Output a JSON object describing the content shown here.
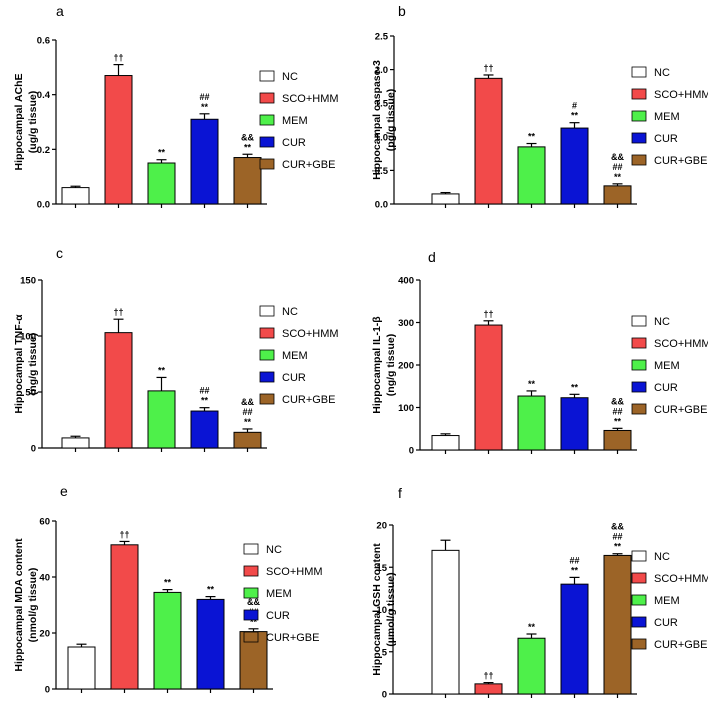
{
  "chart_data": [
    {
      "type": "bar",
      "panel": "a",
      "ylabel_lines": [
        "Hippocampal AChE",
        "(ug/g tissue)"
      ],
      "categories": [
        "NC",
        "SCO+HMM",
        "MEM",
        "CUR",
        "CUR+GBE"
      ],
      "values": [
        0.06,
        0.47,
        0.15,
        0.31,
        0.17
      ],
      "errors": [
        0.005,
        0.04,
        0.012,
        0.02,
        0.012
      ],
      "ylim": [
        0,
        0.6
      ],
      "yticks": [
        0,
        0.2,
        0.4,
        0.6
      ],
      "ytick_labels": [
        "0.0",
        "0.2",
        "0.4",
        "0.6"
      ],
      "annotations": [
        [],
        [
          "††"
        ],
        [
          "**"
        ],
        [
          "##",
          "**"
        ],
        [
          "&&",
          "**"
        ]
      ]
    },
    {
      "type": "bar",
      "panel": "b",
      "ylabel_lines": [
        "Hippocampal caspase-3",
        "(pg/g tissue)"
      ],
      "categories": [
        "NC",
        "SCO+HMM",
        "MEM",
        "CUR",
        "CUR+GBE"
      ],
      "values": [
        0.15,
        1.87,
        0.85,
        1.13,
        0.27
      ],
      "errors": [
        0.02,
        0.05,
        0.05,
        0.08,
        0.03
      ],
      "ylim": [
        0,
        2.5
      ],
      "yticks": [
        0,
        0.5,
        1.0,
        1.5,
        2.0,
        2.5
      ],
      "ytick_labels": [
        "0.0",
        "0.5",
        "1.0",
        "1.5",
        "2.0",
        "2.5"
      ],
      "annotations": [
        [],
        [
          "††"
        ],
        [
          "**"
        ],
        [
          "#",
          "**"
        ],
        [
          "&&",
          "##",
          "**"
        ]
      ]
    },
    {
      "type": "bar",
      "panel": "c",
      "ylabel_lines": [
        "Hippocampal TNF-α",
        "(ng/g tissue)"
      ],
      "categories": [
        "NC",
        "SCO+HMM",
        "MEM",
        "CUR",
        "CUR+GBE"
      ],
      "values": [
        9,
        103,
        51,
        33,
        14
      ],
      "errors": [
        1.5,
        12,
        12,
        3,
        3
      ],
      "ylim": [
        0,
        150
      ],
      "yticks": [
        0,
        50,
        100,
        150
      ],
      "ytick_labels": [
        "0",
        "50",
        "100",
        "150"
      ],
      "annotations": [
        [],
        [
          "††"
        ],
        [
          "**"
        ],
        [
          "##",
          "**"
        ],
        [
          "&&",
          "##",
          "**"
        ]
      ]
    },
    {
      "type": "bar",
      "panel": "d",
      "ylabel_lines": [
        "Hippocampal IL-1-β",
        "(ng/g tissue)"
      ],
      "categories": [
        "NC",
        "SCO+HMM",
        "MEM",
        "CUR",
        "CUR+GBE"
      ],
      "values": [
        34,
        294,
        127,
        123,
        46
      ],
      "errors": [
        4,
        10,
        12,
        8,
        5
      ],
      "ylim": [
        0,
        400
      ],
      "yticks": [
        0,
        100,
        200,
        300,
        400
      ],
      "ytick_labels": [
        "0",
        "100",
        "200",
        "300",
        "400"
      ],
      "annotations": [
        [],
        [
          "††"
        ],
        [
          "**"
        ],
        [
          "**"
        ],
        [
          "&&",
          "##",
          "**"
        ]
      ]
    },
    {
      "type": "bar",
      "panel": "e",
      "ylabel_lines": [
        "Hippocampal MDA content",
        "(nmol/g tissue)"
      ],
      "categories": [
        "NC",
        "SCO+HMM",
        "MEM",
        "CUR",
        "CUR+GBE"
      ],
      "values": [
        15,
        51.5,
        34.5,
        32,
        20.5
      ],
      "errors": [
        1,
        1.2,
        1,
        1,
        1
      ],
      "ylim": [
        0,
        60
      ],
      "yticks": [
        0,
        20,
        40,
        60
      ],
      "ytick_labels": [
        "0",
        "20",
        "40",
        "60"
      ],
      "annotations": [
        [],
        [
          "††"
        ],
        [
          "**"
        ],
        [
          "**"
        ],
        [
          "&&",
          "##",
          "**"
        ]
      ]
    },
    {
      "type": "bar",
      "panel": "f",
      "ylabel_lines": [
        "Hippocampal GSH content",
        "(µmol/g tissue)"
      ],
      "categories": [
        "NC",
        "SCO+HMM",
        "MEM",
        "CUR",
        "CUR+GBE"
      ],
      "values": [
        17,
        1.2,
        6.6,
        13,
        16.4
      ],
      "errors": [
        1.2,
        0.15,
        0.5,
        0.8,
        0.2
      ],
      "ylim": [
        0,
        20
      ],
      "yticks": [
        0,
        5,
        10,
        15,
        20
      ],
      "ytick_labels": [
        "0",
        "5",
        "10",
        "15",
        "20"
      ],
      "annotations": [
        [],
        [
          "††"
        ],
        [
          "**"
        ],
        [
          "##",
          "**"
        ],
        [
          "&&",
          "##",
          "**"
        ]
      ]
    }
  ],
  "legend_colors": [
    "#ffffff",
    "#f24a4a",
    "#4ef04a",
    "#0a14d4",
    "#9c6427"
  ]
}
